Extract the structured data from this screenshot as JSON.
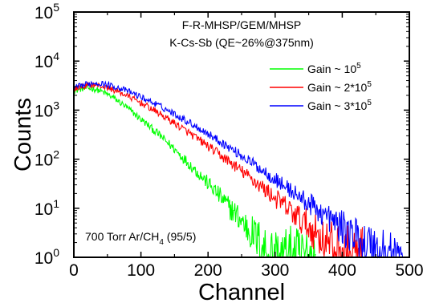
{
  "chart_data": {
    "type": "line",
    "title": "",
    "xlabel": "Channel",
    "ylabel": "Counts",
    "xlim": [
      0,
      500
    ],
    "ylim": [
      1,
      100000
    ],
    "yscale": "log",
    "grid": false,
    "legend_position": "top-right",
    "x_ticks": [
      {
        "value": 0,
        "label": "0"
      },
      {
        "value": 100,
        "label": "100"
      },
      {
        "value": 200,
        "label": "200"
      },
      {
        "value": 300,
        "label": "300"
      },
      {
        "value": 400,
        "label": "400"
      },
      {
        "value": 500,
        "label": "500"
      }
    ],
    "y_ticks": [
      {
        "value": 1,
        "base": "10",
        "exp": "0"
      },
      {
        "value": 10,
        "base": "10",
        "exp": "1"
      },
      {
        "value": 100,
        "base": "10",
        "exp": "2"
      },
      {
        "value": 1000,
        "base": "10",
        "exp": "3"
      },
      {
        "value": 10000,
        "base": "10",
        "exp": "4"
      },
      {
        "value": 100000,
        "base": "10",
        "exp": "5"
      }
    ],
    "annotations": {
      "line1": "F-R-MHSP/GEM/MHSP",
      "line2": "K-Cs-Sb (QE~26%@375nm)",
      "gas_main": "700 Torr Ar/CH",
      "gas_sub": "4",
      "gas_tail": " (95/5)"
    },
    "series": [
      {
        "legend_text": "Gain ~ 10",
        "legend_sup": "5",
        "color": "#00ff00",
        "x": [
          0,
          10,
          20,
          30,
          40,
          50,
          60,
          70,
          80,
          90,
          100,
          110,
          120,
          130,
          140,
          150,
          160,
          170,
          180,
          190,
          200,
          210,
          220,
          230,
          240,
          250,
          260,
          270,
          280,
          290,
          300,
          305,
          310,
          315,
          320,
          330,
          340,
          350,
          360
        ],
        "y": [
          2400,
          2700,
          2800,
          2700,
          2450,
          2100,
          1750,
          1400,
          1100,
          850,
          650,
          500,
          380,
          290,
          215,
          160,
          117,
          85,
          62,
          45,
          32,
          23,
          16,
          11,
          8,
          5.5,
          3.8,
          2.6,
          1.8,
          1.3,
          1.0,
          1.0,
          1.0,
          1.0,
          1.0,
          1.0,
          1.0,
          1.0,
          1.0
        ]
      },
      {
        "legend_text": "Gain ~ 2*10",
        "legend_sup": "5",
        "color": "#ff0000",
        "x": [
          0,
          10,
          20,
          30,
          40,
          50,
          60,
          70,
          80,
          90,
          100,
          110,
          120,
          130,
          140,
          150,
          160,
          170,
          180,
          190,
          200,
          210,
          220,
          230,
          240,
          250,
          260,
          270,
          280,
          290,
          300,
          310,
          320,
          330,
          340,
          350,
          360,
          370,
          380,
          390,
          400,
          410,
          420,
          430
        ],
        "y": [
          2700,
          3000,
          3200,
          3300,
          3100,
          2850,
          2550,
          2250,
          1950,
          1650,
          1400,
          1180,
          980,
          810,
          660,
          540,
          440,
          355,
          285,
          230,
          184,
          146,
          116,
          92,
          73,
          57,
          45,
          35,
          27,
          21,
          16,
          12.5,
          9.5,
          7.2,
          5.5,
          4.2,
          3.2,
          2.5,
          1.9,
          1.5,
          1.2,
          1.0,
          1.0,
          1.0
        ]
      },
      {
        "legend_text": "Gain ~ 3*10",
        "legend_sup": "5",
        "color": "#0000ff",
        "x": [
          0,
          10,
          20,
          30,
          40,
          50,
          60,
          70,
          80,
          90,
          100,
          110,
          120,
          130,
          140,
          150,
          160,
          170,
          180,
          190,
          200,
          210,
          220,
          230,
          240,
          250,
          260,
          270,
          280,
          290,
          300,
          310,
          320,
          330,
          340,
          350,
          360,
          370,
          380,
          390,
          400,
          410,
          420,
          430,
          440,
          450,
          460,
          470,
          480,
          490
        ],
        "y": [
          2800,
          3100,
          3400,
          3600,
          3500,
          3300,
          3050,
          2750,
          2450,
          2150,
          1850,
          1600,
          1370,
          1170,
          990,
          840,
          700,
          585,
          485,
          400,
          330,
          270,
          220,
          180,
          145,
          118,
          95,
          76,
          61,
          49,
          39,
          31,
          25,
          20,
          15.5,
          12.5,
          10,
          8,
          6.3,
          5,
          4,
          3.2,
          2.6,
          2.1,
          1.7,
          1.4,
          1.2,
          1.0,
          1.0,
          1.0
        ]
      }
    ]
  }
}
